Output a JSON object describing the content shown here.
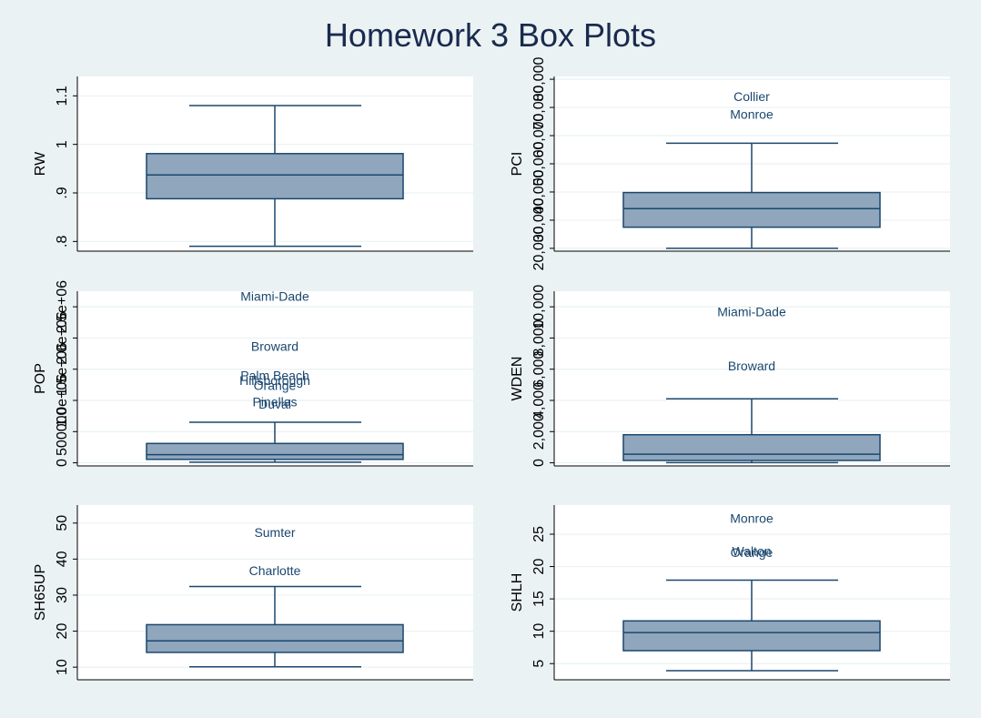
{
  "title": "Homework 3 Box Plots",
  "colors": {
    "background": "#eaf2f3",
    "plot": "#ffffff",
    "box_fill": "#8fa6bc",
    "box_line": "#1a476f",
    "title": "#1a2a4e"
  },
  "chart_data": [
    {
      "type": "box",
      "ylabel": "RW",
      "ylim": [
        0.78,
        1.14
      ],
      "ticks": [
        0.8,
        0.9,
        1,
        1.1
      ],
      "tick_labels": [
        ".8",
        ".9",
        "1",
        "1.1"
      ],
      "box": {
        "whisker_low": 0.79,
        "q1": 0.888,
        "median": 0.937,
        "q3": 0.981,
        "whisker_high": 1.08
      },
      "outliers": []
    },
    {
      "type": "box",
      "ylabel": "PCI",
      "ylim": [
        19000,
        81000
      ],
      "ticks": [
        20000,
        30000,
        40000,
        50000,
        60000,
        70000,
        80000
      ],
      "tick_labels": [
        "20,000",
        "30,000",
        "40,000",
        "50,000",
        "60,000",
        "70,000",
        "80,000"
      ],
      "box": {
        "whisker_low": 20000,
        "q1": 27500,
        "median": 34100,
        "q3": 39800,
        "whisker_high": 57300
      },
      "outliers": [
        {
          "label": "Collier",
          "value": 73500
        },
        {
          "label": "Monroe",
          "value": 67200
        }
      ]
    },
    {
      "type": "box",
      "ylabel": "POP",
      "ylim": [
        -50000,
        2750000
      ],
      "ticks": [
        0,
        500000,
        1000000,
        1500000,
        2000000,
        2500000
      ],
      "tick_labels": [
        "0",
        "500000",
        "1.0e+06",
        "1.5e+06",
        "2.0e+06",
        "2.5e+06"
      ],
      "box": {
        "whisker_low": 10000,
        "q1": 55000,
        "median": 130000,
        "q3": 310000,
        "whisker_high": 650000
      },
      "outliers": [
        {
          "label": "Miami-Dade",
          "value": 2650000
        },
        {
          "label": "Broward",
          "value": 1850000
        },
        {
          "label": "Palm Beach",
          "value": 1380000
        },
        {
          "label": "Hillsborough",
          "value": 1300000
        },
        {
          "label": "Orange",
          "value": 1220000
        },
        {
          "label": "Pinellas",
          "value": 960000
        },
        {
          "label": "Duval",
          "value": 920000
        }
      ]
    },
    {
      "type": "box",
      "ylabel": "WDEN",
      "ylim": [
        -200,
        11000
      ],
      "ticks": [
        0,
        2000,
        4000,
        6000,
        8000,
        10000
      ],
      "tick_labels": [
        "0",
        "2,000",
        "4,000",
        "6,000",
        "8,000",
        "10,000"
      ],
      "box": {
        "whisker_low": 10,
        "q1": 150,
        "median": 550,
        "q3": 1800,
        "whisker_high": 4100
      },
      "outliers": [
        {
          "label": "Miami-Dade",
          "value": 9600
        },
        {
          "label": "Broward",
          "value": 6150
        }
      ]
    },
    {
      "type": "box",
      "ylabel": "SH65UP",
      "ylim": [
        6.5,
        55
      ],
      "ticks": [
        10,
        20,
        30,
        40,
        50
      ],
      "tick_labels": [
        "10",
        "20",
        "30",
        "40",
        "50"
      ],
      "box": {
        "whisker_low": 10.1,
        "q1": 14.1,
        "median": 17.3,
        "q3": 21.8,
        "whisker_high": 32.4
      },
      "outliers": [
        {
          "label": "Sumter",
          "value": 47.1
        },
        {
          "label": "Charlotte",
          "value": 36.5
        }
      ]
    },
    {
      "type": "box",
      "ylabel": "SHLH",
      "ylim": [
        2.5,
        29.5
      ],
      "ticks": [
        5,
        10,
        15,
        20,
        25
      ],
      "tick_labels": [
        "5",
        "10",
        "15",
        "20",
        "25"
      ],
      "box": {
        "whisker_low": 3.9,
        "q1": 7.0,
        "median": 9.8,
        "q3": 11.6,
        "whisker_high": 17.9
      },
      "outliers": [
        {
          "label": "Monroe",
          "value": 27.3
        },
        {
          "label": "Walton",
          "value": 22.2
        },
        {
          "label": "Orange",
          "value": 22.0
        }
      ]
    }
  ]
}
